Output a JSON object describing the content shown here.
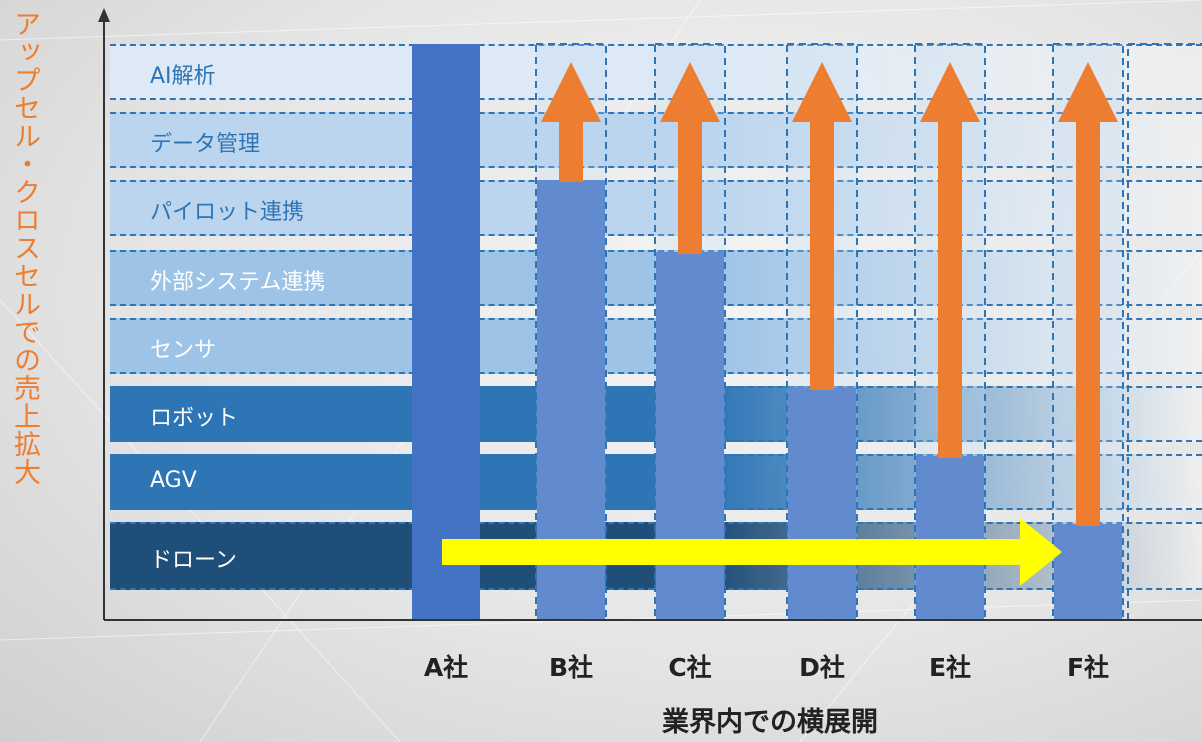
{
  "y_axis_title": "アップセル・クロスセルでの売上拡大",
  "x_axis_title": "業界内での横展開",
  "layers": [
    {
      "label": "AI解析",
      "color": "#dde9f6",
      "text_color": "#2e75b6"
    },
    {
      "label": "データ管理",
      "color": "#bcd5ee",
      "text_color": "#2e75b6"
    },
    {
      "label": "パイロット連携",
      "color": "#bcd5ee",
      "text_color": "#2e75b6"
    },
    {
      "label": "外部システム連携",
      "color": "#9dc3e6",
      "text_color": "#ffffff"
    },
    {
      "label": "センサ",
      "color": "#9dc3e6",
      "text_color": "#ffffff"
    },
    {
      "label": "ロボット",
      "color": "#2e75b6",
      "text_color": "#ffffff"
    },
    {
      "label": "AGV",
      "color": "#2e75b6",
      "text_color": "#ffffff"
    },
    {
      "label": "ドローン",
      "color": "#1f4e79",
      "text_color": "#ffffff"
    }
  ],
  "companies": [
    {
      "label": "A社",
      "layers_filled": 8
    },
    {
      "label": "B社",
      "layers_filled": 6
    },
    {
      "label": "C社",
      "layers_filled": 5
    },
    {
      "label": "D社",
      "layers_filled": 3
    },
    {
      "label": "E社",
      "layers_filled": 2
    },
    {
      "label": "F社",
      "layers_filled": 1
    }
  ],
  "colors": {
    "bar": "#4472c4",
    "upsell_arrow": "#ed7d31",
    "expansion_arrow": "#ffff00",
    "axis": "#333333",
    "label_orange": "#ed7d31"
  }
}
